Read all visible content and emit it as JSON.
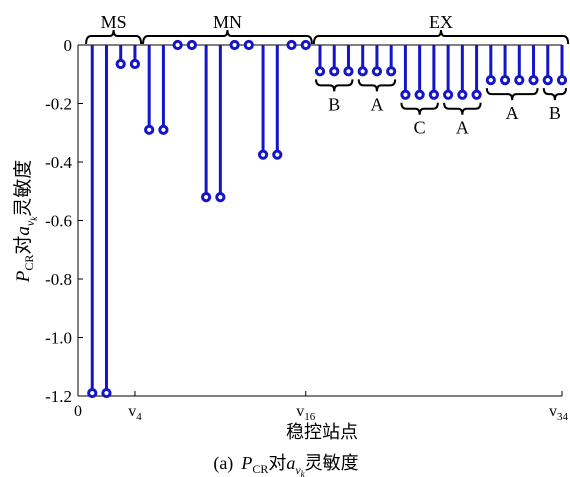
{
  "chart_data": {
    "type": "stem",
    "caption": {
      "prefix": "(a)",
      "p": "P",
      "cr": "CR",
      "dui": "对",
      "a": "a",
      "v": "v",
      "k": "k",
      "suffix": "灵敏度"
    },
    "ylabel": {
      "p": "P",
      "cr": "CR",
      "dui": "对",
      "a": "a",
      "v": "v",
      "k": "k",
      "suffix": "灵敏度"
    },
    "xlabel": "稳控站点",
    "xlim": [
      0,
      34
    ],
    "ylim": [
      -1.2,
      0
    ],
    "yticks": [
      "0",
      "-0.2",
      "-0.4",
      "-0.6",
      "-0.8",
      "-1.0",
      "-1.2"
    ],
    "yticks_values": [
      0,
      -0.2,
      -0.4,
      -0.6,
      -0.8,
      -1.0,
      -1.2
    ],
    "xticks": [
      {
        "value": 0,
        "label": "0"
      },
      {
        "value": 4,
        "label": "v",
        "sub": "4"
      },
      {
        "value": 16,
        "label": "v",
        "sub": "16"
      },
      {
        "value": 34,
        "label": "v",
        "sub": "34"
      }
    ],
    "series": [
      {
        "color": "#1515c8",
        "x": [
          1,
          2,
          3,
          4,
          5,
          6,
          7,
          8,
          9,
          10,
          11,
          12,
          13,
          14,
          15,
          16,
          17,
          18,
          19,
          20,
          21,
          22,
          23,
          24,
          25,
          26,
          27,
          28,
          29,
          30,
          31,
          32,
          33,
          34
        ],
        "values": [
          -1.19,
          -1.19,
          -0.065,
          -0.065,
          -0.29,
          -0.29,
          0,
          0,
          -0.52,
          -0.52,
          0,
          0,
          -0.375,
          -0.375,
          0,
          0,
          -0.09,
          -0.09,
          -0.09,
          -0.09,
          -0.09,
          -0.09,
          -0.17,
          -0.17,
          -0.17,
          -0.17,
          -0.17,
          -0.17,
          -0.12,
          -0.12,
          -0.12,
          -0.12,
          -0.12,
          -0.12
        ]
      }
    ],
    "group_brackets": [
      {
        "label": "MS",
        "from": 1,
        "to": 4
      },
      {
        "label": "MN",
        "from": 5,
        "to": 16
      },
      {
        "label": "EX",
        "from": 17,
        "to": 34
      }
    ],
    "sub_brackets": [
      {
        "label": "B",
        "from": 17,
        "to": 19
      },
      {
        "label": "A",
        "from": 20,
        "to": 22
      },
      {
        "label": "C",
        "from": 23,
        "to": 25
      },
      {
        "label": "A",
        "from": 26,
        "to": 28
      },
      {
        "label": "A",
        "from": 29,
        "to": 32
      },
      {
        "label": "B",
        "from": 33,
        "to": 34
      }
    ]
  }
}
